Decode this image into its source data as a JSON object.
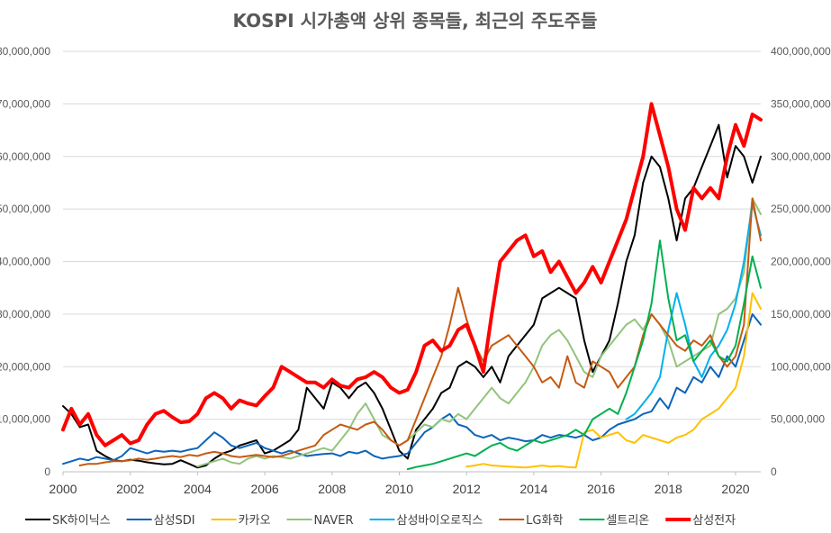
{
  "chart_data": {
    "type": "line",
    "title": "KOSPI 시가총액 상위 종목들, 최근의 주도주들",
    "x_range": [
      2000,
      2020.75
    ],
    "x_ticks": [
      "2000",
      "2002",
      "2004",
      "2006",
      "2008",
      "2010",
      "2012",
      "2014",
      "2016",
      "2018",
      "2020"
    ],
    "y_left": {
      "range": [
        0,
        80000000
      ],
      "ticks": [
        "0",
        "10,000,000",
        "20,000,000",
        "30,000,000",
        "40,000,000",
        "50,000,000",
        "60,000,000",
        "70,000,000",
        "80,000,000"
      ]
    },
    "y_right": {
      "range": [
        0,
        400000000
      ],
      "ticks": [
        "0",
        "50,000,000",
        "100,000,000",
        "150,000,000",
        "200,000,000",
        "250,000,000",
        "300,000,000",
        "350,000,000",
        "400,000,000"
      ]
    },
    "grid": true,
    "legend_position": "bottom",
    "x_start": 2000,
    "x_step": 0.25,
    "series": [
      {
        "name": "SK하이닉스",
        "color": "#000000",
        "width": 2,
        "axis": "left",
        "values": [
          12500000,
          11000000,
          8500000,
          9000000,
          4000000,
          3000000,
          2200000,
          2000000,
          2300000,
          2100000,
          1800000,
          1600000,
          1400000,
          1500000,
          2200000,
          1500000,
          800000,
          1200000,
          2500000,
          3500000,
          4000000,
          5000000,
          5500000,
          6000000,
          3500000,
          4000000,
          5000000,
          6000000,
          8000000,
          16000000,
          14000000,
          12000000,
          17000000,
          16000000,
          14000000,
          16000000,
          17000000,
          15000000,
          12000000,
          8000000,
          4000000,
          2500000,
          8000000,
          10000000,
          12000000,
          15000000,
          16000000,
          20000000,
          21000000,
          20000000,
          18000000,
          20000000,
          17000000,
          22000000,
          24000000,
          26000000,
          28000000,
          33000000,
          34000000,
          35000000,
          34000000,
          33000000,
          25000000,
          19000000,
          22000000,
          25000000,
          32000000,
          40000000,
          45000000,
          55000000,
          60000000,
          58000000,
          52000000,
          44000000,
          52000000,
          54000000,
          58000000,
          62000000,
          66000000,
          56000000,
          62000000,
          60000000,
          55000000,
          60000000
        ]
      },
      {
        "name": "삼성SDI",
        "color": "#0c64ba",
        "width": 2,
        "axis": "left",
        "values": [
          1500000,
          2000000,
          2500000,
          2200000,
          2800000,
          2500000,
          2200000,
          3000000,
          4500000,
          4000000,
          3500000,
          4000000,
          3800000,
          4000000,
          3800000,
          4200000,
          4500000,
          6000000,
          7500000,
          6500000,
          5000000,
          4500000,
          5000000,
          5500000,
          4500000,
          4000000,
          3500000,
          4000000,
          3500000,
          3000000,
          3200000,
          3400000,
          3500000,
          3000000,
          3800000,
          3500000,
          4000000,
          3000000,
          2500000,
          2800000,
          3000000,
          3500000,
          5500000,
          7500000,
          8500000,
          10000000,
          11000000,
          9000000,
          8500000,
          7000000,
          6500000,
          7000000,
          6000000,
          6500000,
          6200000,
          5800000,
          6000000,
          7000000,
          6500000,
          7000000,
          6800000,
          6500000,
          7000000,
          6000000,
          6500000,
          8000000,
          9000000,
          9500000,
          10000000,
          11000000,
          11500000,
          14000000,
          12000000,
          16000000,
          15000000,
          18000000,
          17000000,
          20000000,
          18000000,
          22000000,
          20000000,
          25000000,
          30000000,
          28000000
        ]
      },
      {
        "name": "카카오",
        "color": "#ffc000",
        "width": 2,
        "axis": "left",
        "values": [
          null,
          null,
          null,
          null,
          null,
          null,
          null,
          null,
          null,
          null,
          null,
          null,
          null,
          null,
          null,
          null,
          null,
          null,
          null,
          null,
          null,
          null,
          null,
          null,
          null,
          null,
          null,
          null,
          null,
          null,
          null,
          null,
          null,
          null,
          null,
          null,
          null,
          null,
          null,
          null,
          null,
          null,
          null,
          null,
          null,
          null,
          null,
          null,
          1000000,
          1200000,
          1500000,
          1200000,
          1100000,
          1000000,
          900000,
          800000,
          1000000,
          1200000,
          1000000,
          1100000,
          900000,
          800000,
          7500000,
          8000000,
          6500000,
          7000000,
          7500000,
          6000000,
          5500000,
          7000000,
          6500000,
          6000000,
          5500000,
          6500000,
          7000000,
          8000000,
          10000000,
          11000000,
          12000000,
          14000000,
          16000000,
          22000000,
          34000000,
          31000000
        ]
      },
      {
        "name": "NAVER",
        "color": "#92c47c",
        "width": 2,
        "axis": "left",
        "values": [
          null,
          null,
          null,
          null,
          null,
          null,
          null,
          null,
          null,
          null,
          null,
          null,
          null,
          null,
          null,
          null,
          1000000,
          1500000,
          2000000,
          2500000,
          1800000,
          1500000,
          2500000,
          3000000,
          2500000,
          3000000,
          2800000,
          2500000,
          3000000,
          3500000,
          4000000,
          4500000,
          4000000,
          6000000,
          8000000,
          11000000,
          13000000,
          10000000,
          7000000,
          6000000,
          5000000,
          6000000,
          7500000,
          9000000,
          8500000,
          10000000,
          9500000,
          11000000,
          10000000,
          12000000,
          14000000,
          16000000,
          14000000,
          13000000,
          15000000,
          17000000,
          20000000,
          24000000,
          26000000,
          27000000,
          25000000,
          22000000,
          19000000,
          18000000,
          22000000,
          24000000,
          26000000,
          28000000,
          29000000,
          27000000,
          30000000,
          28000000,
          25000000,
          20000000,
          21000000,
          22000000,
          23000000,
          24000000,
          30000000,
          31000000,
          33000000,
          38000000,
          52000000,
          49000000
        ]
      },
      {
        "name": "삼성바이오로직스",
        "color": "#00b0f0",
        "width": 2,
        "axis": "left",
        "values": [
          null,
          null,
          null,
          null,
          null,
          null,
          null,
          null,
          null,
          null,
          null,
          null,
          null,
          null,
          null,
          null,
          null,
          null,
          null,
          null,
          null,
          null,
          null,
          null,
          null,
          null,
          null,
          null,
          null,
          null,
          null,
          null,
          null,
          null,
          null,
          null,
          null,
          null,
          null,
          null,
          null,
          null,
          null,
          null,
          null,
          null,
          null,
          null,
          null,
          null,
          null,
          null,
          null,
          null,
          null,
          null,
          null,
          null,
          null,
          null,
          null,
          null,
          null,
          null,
          null,
          null,
          null,
          10000000,
          11000000,
          13000000,
          15000000,
          18000000,
          27000000,
          34000000,
          28000000,
          21000000,
          18000000,
          22000000,
          24000000,
          27000000,
          32000000,
          40000000,
          51000000,
          45000000
        ]
      },
      {
        "name": "LG화학",
        "color": "#c55a11",
        "width": 2,
        "axis": "left",
        "values": [
          null,
          null,
          1200000,
          1500000,
          1500000,
          1800000,
          2000000,
          2000000,
          2200000,
          2500000,
          2300000,
          2500000,
          2800000,
          3000000,
          2800000,
          3200000,
          3000000,
          3500000,
          3800000,
          3500000,
          3000000,
          2800000,
          3000000,
          3200000,
          3000000,
          2800000,
          3000000,
          3500000,
          4000000,
          4500000,
          5000000,
          7000000,
          8000000,
          9000000,
          8500000,
          8000000,
          9000000,
          9500000,
          8000000,
          6000000,
          5000000,
          6000000,
          10000000,
          14000000,
          18000000,
          22000000,
          28000000,
          35000000,
          29000000,
          24000000,
          21000000,
          24000000,
          25000000,
          26000000,
          24000000,
          22000000,
          20000000,
          17000000,
          18000000,
          16000000,
          22000000,
          17000000,
          16000000,
          21000000,
          20000000,
          19000000,
          16000000,
          18000000,
          20000000,
          26000000,
          30000000,
          28000000,
          26000000,
          24000000,
          23000000,
          25000000,
          24000000,
          26000000,
          22000000,
          20000000,
          22000000,
          28000000,
          52000000,
          44000000
        ]
      },
      {
        "name": "셀트리온",
        "color": "#00b050",
        "width": 2,
        "axis": "left",
        "values": [
          null,
          null,
          null,
          null,
          null,
          null,
          null,
          null,
          null,
          null,
          null,
          null,
          null,
          null,
          null,
          null,
          null,
          null,
          null,
          null,
          null,
          null,
          null,
          null,
          null,
          null,
          null,
          null,
          null,
          null,
          null,
          null,
          null,
          null,
          null,
          null,
          null,
          null,
          null,
          null,
          null,
          500000,
          900000,
          1200000,
          1500000,
          2000000,
          2500000,
          3000000,
          3500000,
          3000000,
          4000000,
          5000000,
          5500000,
          4500000,
          4000000,
          5000000,
          6000000,
          5500000,
          6000000,
          6500000,
          7000000,
          8000000,
          7000000,
          10000000,
          11000000,
          12000000,
          11000000,
          15000000,
          20000000,
          25000000,
          32000000,
          44000000,
          33000000,
          25000000,
          26000000,
          21000000,
          23000000,
          25000000,
          22000000,
          21000000,
          24000000,
          32000000,
          41000000,
          35000000
        ]
      },
      {
        "name": "삼성전자",
        "color": "#ff0000",
        "width": 4,
        "axis": "right",
        "values": [
          40000000,
          60000000,
          45000000,
          55000000,
          35000000,
          25000000,
          30000000,
          35000000,
          27000000,
          30000000,
          45000000,
          55000000,
          58000000,
          52000000,
          47000000,
          48000000,
          55000000,
          70000000,
          75000000,
          70000000,
          60000000,
          68000000,
          65000000,
          63000000,
          72000000,
          80000000,
          100000000,
          95000000,
          90000000,
          85000000,
          85000000,
          80000000,
          88000000,
          82000000,
          80000000,
          88000000,
          90000000,
          95000000,
          90000000,
          80000000,
          75000000,
          78000000,
          95000000,
          120000000,
          125000000,
          115000000,
          120000000,
          135000000,
          140000000,
          120000000,
          95000000,
          150000000,
          200000000,
          210000000,
          220000000,
          225000000,
          205000000,
          210000000,
          190000000,
          200000000,
          185000000,
          170000000,
          180000000,
          195000000,
          180000000,
          200000000,
          220000000,
          240000000,
          270000000,
          300000000,
          350000000,
          320000000,
          290000000,
          250000000,
          230000000,
          270000000,
          260000000,
          270000000,
          260000000,
          300000000,
          330000000,
          310000000,
          340000000,
          335000000
        ]
      }
    ]
  }
}
